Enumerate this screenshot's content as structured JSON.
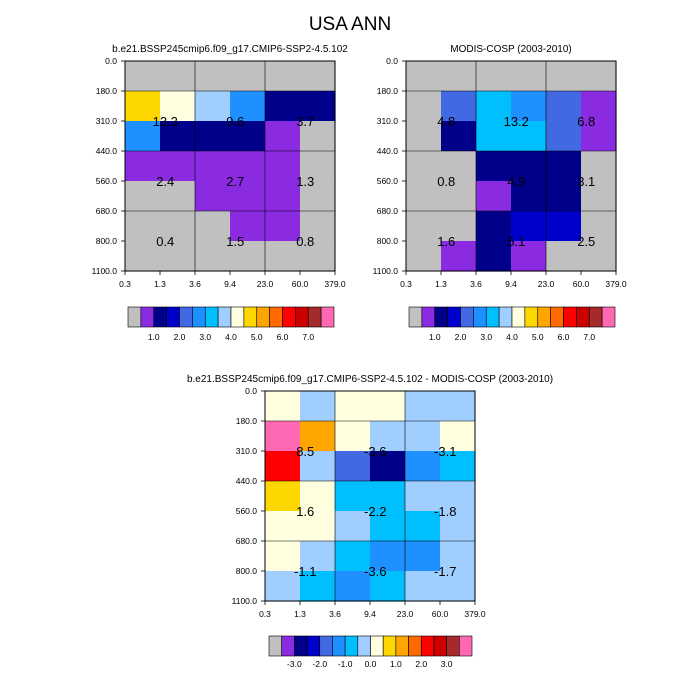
{
  "figure": {
    "title": "USA ANN"
  },
  "colors": {
    "cmap12": [
      "#c0c0c0",
      "#8a2be2",
      "#00008b",
      "#0000cd",
      "#4169e1",
      "#1e90ff",
      "#00bfff",
      "#a0cfff",
      "#ffffe0",
      "#ffd700",
      "#ffa500",
      "#ff6a00",
      "#ff0000",
      "#cd0000",
      "#a52a2a",
      "#ff69b4"
    ],
    "cmapdiff": [
      "#c0c0c0",
      "#8a2be2",
      "#00008b",
      "#0000cd",
      "#4169e1",
      "#1e90ff",
      "#00bfff",
      "#a0cfff",
      "#ffffe0",
      "#ffd700",
      "#ffa500",
      "#ff6a00",
      "#ff0000",
      "#cd0000",
      "#a52a2a",
      "#ff69b4"
    ]
  },
  "chart_data": [
    {
      "type": "heatmap",
      "title": "b.e21.BSSP245cmip6.f09_g17.CMIP6-SSP2-4.5.102",
      "x_tick_labels": [
        "0.3",
        "1.3",
        "3.6",
        "9.4",
        "23.0",
        "60.0",
        "379.0"
      ],
      "y_tick_labels": [
        "0.0",
        "180.0",
        "310.0",
        "440.0",
        "560.0",
        "680.0",
        "800.0",
        "1100.0"
      ],
      "cells": [
        [
          0,
          0,
          0,
          0,
          0,
          0
        ],
        [
          9,
          8,
          7,
          5,
          2,
          2
        ],
        [
          5,
          2,
          2,
          2,
          1,
          0
        ],
        [
          1,
          1,
          1,
          1,
          1,
          0
        ],
        [
          0,
          0,
          1,
          1,
          1,
          0
        ],
        [
          0,
          0,
          0,
          1,
          1,
          0
        ],
        [
          0,
          0,
          0,
          0,
          0,
          0
        ]
      ],
      "labels": [
        {
          "text": "13.3",
          "col": 1,
          "row": 1
        },
        {
          "text": "9.6",
          "col": 3,
          "row": 1
        },
        {
          "text": "3.7",
          "col": 5,
          "row": 1
        },
        {
          "text": "2.4",
          "col": 1,
          "row": 3
        },
        {
          "text": "2.7",
          "col": 3,
          "row": 3
        },
        {
          "text": "1.3",
          "col": 5,
          "row": 3
        },
        {
          "text": "0.4",
          "col": 1,
          "row": 5
        },
        {
          "text": "1.5",
          "col": 3,
          "row": 5
        },
        {
          "text": "0.8",
          "col": 5,
          "row": 5
        }
      ],
      "colorbar": {
        "tick_labels": [
          "1.0",
          "2.0",
          "3.0",
          "4.0",
          "5.0",
          "6.0",
          "7.0"
        ],
        "tick_after_box": [
          1,
          3,
          5,
          7,
          9,
          11,
          13
        ]
      }
    },
    {
      "type": "heatmap",
      "title": "MODIS-COSP (2003-2010)",
      "x_tick_labels": [
        "0.3",
        "1.3",
        "3.6",
        "9.4",
        "23.0",
        "60.0",
        "379.0"
      ],
      "y_tick_labels": [
        "0.0",
        "180.0",
        "310.0",
        "440.0",
        "560.0",
        "680.0",
        "800.0",
        "1100.0"
      ],
      "cells": [
        [
          0,
          0,
          0,
          0,
          0,
          0
        ],
        [
          0,
          4,
          6,
          5,
          4,
          1
        ],
        [
          0,
          2,
          6,
          6,
          4,
          1
        ],
        [
          0,
          0,
          2,
          2,
          2,
          0
        ],
        [
          0,
          0,
          1,
          2,
          2,
          0
        ],
        [
          0,
          0,
          2,
          3,
          3,
          0
        ],
        [
          0,
          1,
          2,
          1,
          0,
          0
        ]
      ],
      "labels": [
        {
          "text": "4.8",
          "col": 1,
          "row": 1
        },
        {
          "text": "13.2",
          "col": 3,
          "row": 1
        },
        {
          "text": "6.8",
          "col": 5,
          "row": 1
        },
        {
          "text": "0.8",
          "col": 1,
          "row": 3
        },
        {
          "text": "4.9",
          "col": 3,
          "row": 3
        },
        {
          "text": "3.1",
          "col": 5,
          "row": 3
        },
        {
          "text": "1.6",
          "col": 1,
          "row": 5
        },
        {
          "text": "5.1",
          "col": 3,
          "row": 5
        },
        {
          "text": "2.5",
          "col": 5,
          "row": 5
        }
      ],
      "colorbar": {
        "tick_labels": [
          "1.0",
          "2.0",
          "3.0",
          "4.0",
          "5.0",
          "6.0",
          "7.0"
        ],
        "tick_after_box": [
          1,
          3,
          5,
          7,
          9,
          11,
          13
        ]
      }
    },
    {
      "type": "heatmap",
      "title": "b.e21.BSSP245cmip6.f09_g17.CMIP6-SSP2-4.5.102 - MODIS-COSP (2003-2010)",
      "x_tick_labels": [
        "0.3",
        "1.3",
        "3.6",
        "9.4",
        "23.0",
        "60.0",
        "379.0"
      ],
      "y_tick_labels": [
        "0.0",
        "180.0",
        "310.0",
        "440.0",
        "560.0",
        "680.0",
        "800.0",
        "1100.0"
      ],
      "cells": [
        [
          8,
          7,
          8,
          8,
          7,
          7
        ],
        [
          15,
          10,
          8,
          7,
          7,
          8
        ],
        [
          12,
          7,
          4,
          2,
          5,
          6
        ],
        [
          9,
          8,
          6,
          6,
          7,
          7
        ],
        [
          8,
          8,
          7,
          6,
          6,
          7
        ],
        [
          8,
          7,
          6,
          5,
          5,
          7
        ],
        [
          7,
          6,
          5,
          6,
          7,
          7
        ]
      ],
      "labels": [
        {
          "text": "8.5",
          "col": 1,
          "row": 1
        },
        {
          "text": "-3.6",
          "col": 3,
          "row": 1
        },
        {
          "text": "-3.1",
          "col": 5,
          "row": 1
        },
        {
          "text": "1.6",
          "col": 1,
          "row": 3
        },
        {
          "text": "-2.2",
          "col": 3,
          "row": 3
        },
        {
          "text": "-1.8",
          "col": 5,
          "row": 3
        },
        {
          "text": "-1.1",
          "col": 1,
          "row": 5
        },
        {
          "text": "-3.6",
          "col": 3,
          "row": 5
        },
        {
          "text": "-1.7",
          "col": 5,
          "row": 5
        }
      ],
      "colorbar": {
        "tick_labels": [
          "-3.0",
          "-2.0",
          "-1.0",
          "0.0",
          "1.0",
          "2.0",
          "3.0"
        ],
        "tick_after_box": [
          1,
          3,
          5,
          7,
          9,
          11,
          13
        ]
      }
    }
  ]
}
